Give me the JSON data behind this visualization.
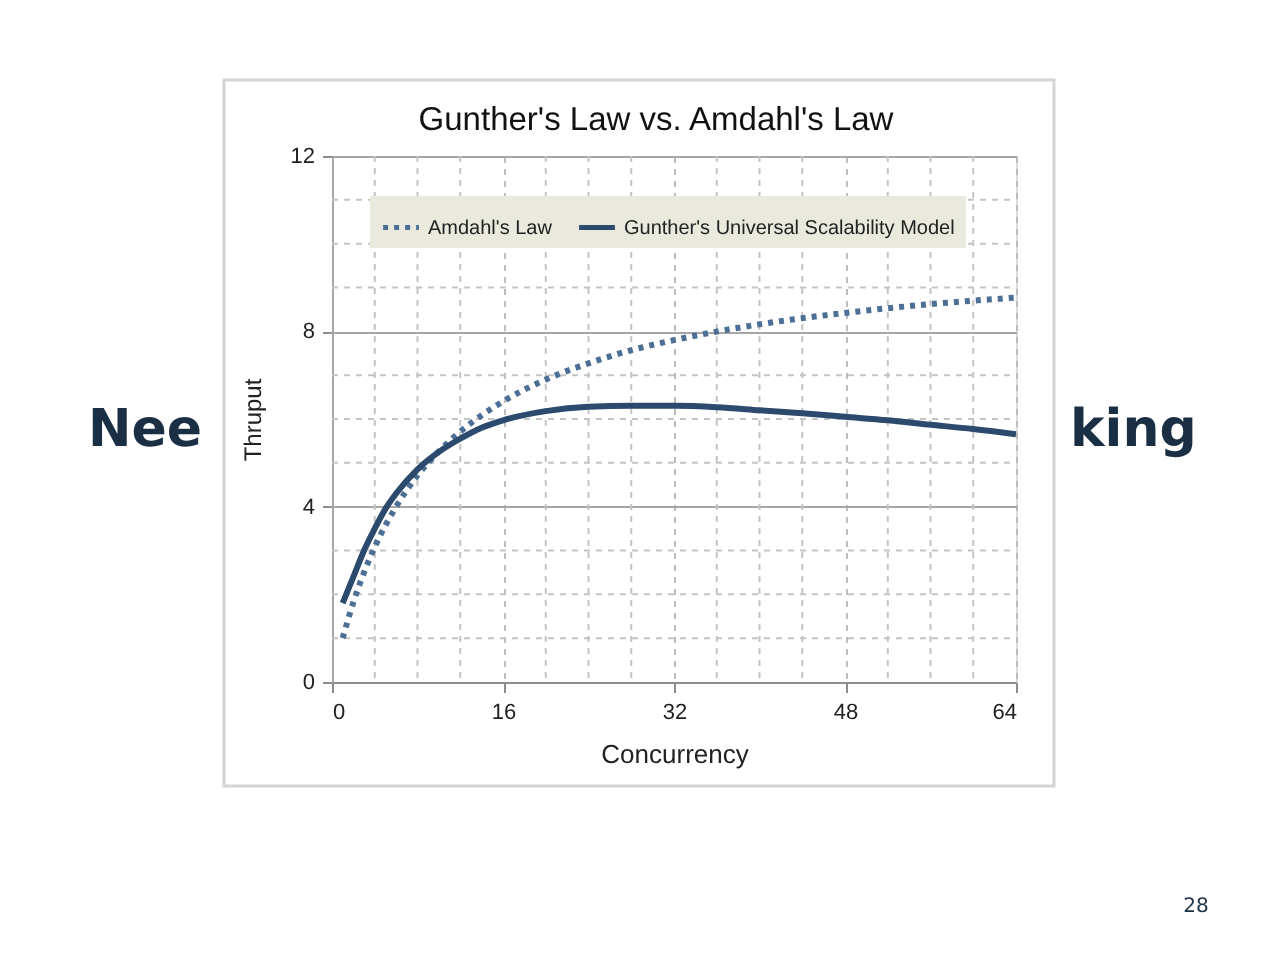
{
  "chart_data": {
    "type": "line",
    "title": "Gunther's Law vs. Amdahl's Law",
    "xlabel": "Concurrency",
    "ylabel": "Thruput",
    "xlim": [
      0,
      64
    ],
    "xticks": [
      0,
      16,
      32,
      48,
      64
    ],
    "ylim": [
      0,
      12
    ],
    "yticks": [
      0,
      4,
      8,
      12
    ],
    "grid": true,
    "legend": "top",
    "series": [
      {
        "name": "Amdahl's Law",
        "color": "#4d6f96",
        "line_style": "dotted",
        "x": [
          1,
          2,
          3,
          4,
          6,
          8,
          10,
          12,
          16,
          20,
          24,
          28,
          32,
          40,
          48,
          56,
          64
        ],
        "values": [
          1.0,
          1.82,
          2.5,
          3.08,
          4.0,
          4.71,
          5.26,
          5.71,
          6.4,
          6.9,
          7.27,
          7.57,
          7.8,
          8.16,
          8.42,
          8.62,
          8.77
        ]
      },
      {
        "name": "Gunther's Universal Scalability Model",
        "color": "#2b4a6e",
        "line_style": "solid",
        "x": [
          1,
          2,
          3,
          4,
          5,
          6,
          8,
          10,
          12,
          14,
          16,
          20,
          24,
          28,
          32,
          36,
          40,
          44,
          48,
          52,
          56,
          60,
          64
        ],
        "values": [
          1.8,
          2.4,
          3.0,
          3.5,
          3.95,
          4.3,
          4.85,
          5.25,
          5.55,
          5.8,
          5.97,
          6.18,
          6.28,
          6.3,
          6.3,
          6.27,
          6.2,
          6.13,
          6.05,
          5.97,
          5.87,
          5.77,
          5.65
        ]
      }
    ],
    "annotations": [
      "Nee",
      "king",
      "28"
    ]
  }
}
